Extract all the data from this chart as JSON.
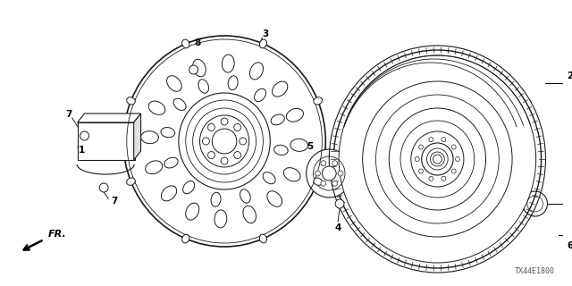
{
  "bg_color": "#ffffff",
  "fig_width": 6.4,
  "fig_height": 3.2,
  "dpi": 100,
  "watermark": "TX44E1800",
  "line_color": "#1a1a1a",
  "label_fontsize": 7.5
}
